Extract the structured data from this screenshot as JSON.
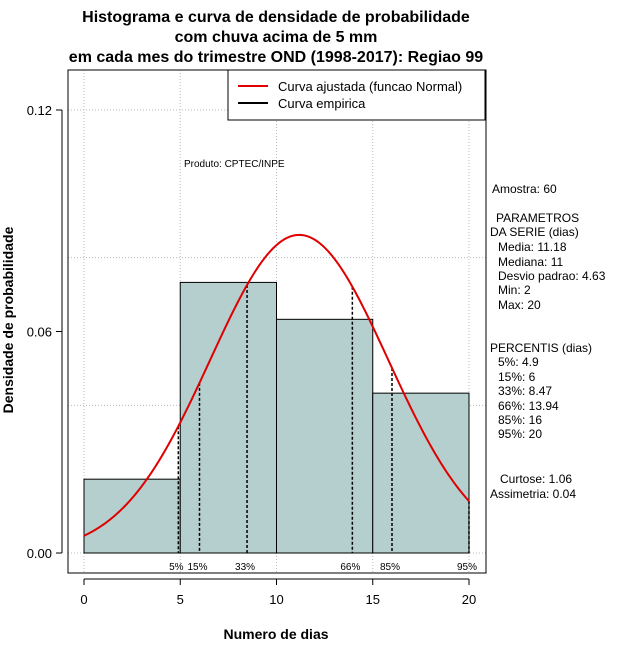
{
  "chart_data": {
    "type": "bar",
    "title_lines": [
      "Histograma e curva de densidade de probabilidade",
      "com chuva acima de 5 mm",
      "em cada mes do trimestre OND (1998-2017): Regiao 99"
    ],
    "xlabel": "Numero de dias",
    "ylabel": "Densidade de probabilidade",
    "xlim": [
      0,
      20
    ],
    "ylim": [
      0,
      0.12
    ],
    "x_ticks": [
      0,
      5,
      10,
      15,
      20
    ],
    "y_ticks": [
      {
        "value": 0.0,
        "label": "0.00"
      },
      {
        "value": 0.06,
        "label": "0.06"
      },
      {
        "value": 0.12,
        "label": "0.12"
      }
    ],
    "grid": true,
    "bins": [
      {
        "from": 0,
        "to": 5,
        "density": 0.02
      },
      {
        "from": 5,
        "to": 10,
        "density": 0.0733
      },
      {
        "from": 10,
        "to": 15,
        "density": 0.0633
      },
      {
        "from": 15,
        "to": 20,
        "density": 0.0433
      }
    ],
    "bar_color": "#b5cece",
    "normal_fit": {
      "mean": 11.18,
      "sd": 4.63,
      "color": "#e00000"
    },
    "percentiles": [
      {
        "label": "5%",
        "x": 4.9
      },
      {
        "label": "15%",
        "x": 6
      },
      {
        "label": "33%",
        "x": 8.47
      },
      {
        "label": "66%",
        "x": 13.94
      },
      {
        "label": "85%",
        "x": 16
      },
      {
        "label": "95%",
        "x": 20
      }
    ],
    "legend": {
      "position": "top-right",
      "entries": [
        {
          "label": "Curva ajustada (funcao Normal)",
          "color": "#e00000"
        },
        {
          "label": "Curva empirica",
          "color": "#000000"
        }
      ]
    },
    "annotation": "Produto: CPTEC/INPE"
  },
  "side_panel": {
    "lines": [
      "Amostra: 60",
      "PARAMETROS",
      "DA SERIE (dias)",
      "Media: 11.18",
      "Mediana: 11",
      "Desvio padrao: 4.63",
      "Min: 2",
      "Max: 20",
      "PERCENTIS (dias)",
      "5%: 4.9",
      "15%: 6",
      "33%: 8.47",
      "66%: 13.94",
      "85%: 16",
      "95%: 20",
      "Curtose: 1.06",
      "Assimetria: 0.04"
    ]
  }
}
